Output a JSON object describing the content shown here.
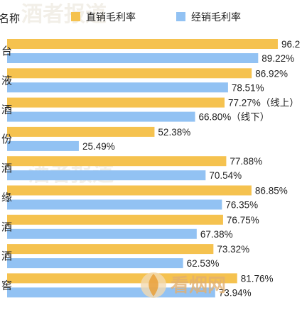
{
  "chart_data": {
    "type": "bar",
    "orientation": "horizontal",
    "legend": [
      {
        "name": "直销毛利率",
        "color": "#F5C24F"
      },
      {
        "name": "经销毛利率",
        "color": "#92C2F3"
      }
    ],
    "axis_header": "名称",
    "categories": [
      "台",
      "液",
      "酒",
      "份",
      "酒",
      "缘",
      "酒",
      "酒",
      "窖"
    ],
    "series": [
      {
        "name": "直销毛利率",
        "color": "#F5C24F",
        "values": [
          96.2,
          86.92,
          77.27,
          52.38,
          77.88,
          86.85,
          76.75,
          73.32,
          81.76
        ],
        "labels": [
          "96.2",
          "86.92%",
          "77.27%（线上）",
          "52.38%",
          "77.88%",
          "86.85%",
          "76.75%",
          "73.32%",
          "81.76%"
        ]
      },
      {
        "name": "经销毛利率",
        "color": "#92C2F3",
        "values": [
          89.22,
          78.51,
          66.8,
          25.49,
          70.54,
          76.35,
          67.38,
          62.53,
          73.94
        ],
        "labels": [
          "89.22%",
          "78.51%",
          "66.80%（线下）",
          "25.49%",
          "70.54%",
          "76.35%",
          "67.38%",
          "62.53%",
          "73.94%"
        ]
      }
    ],
    "watermark": "酒者报道",
    "logo_text": "看烟网"
  }
}
